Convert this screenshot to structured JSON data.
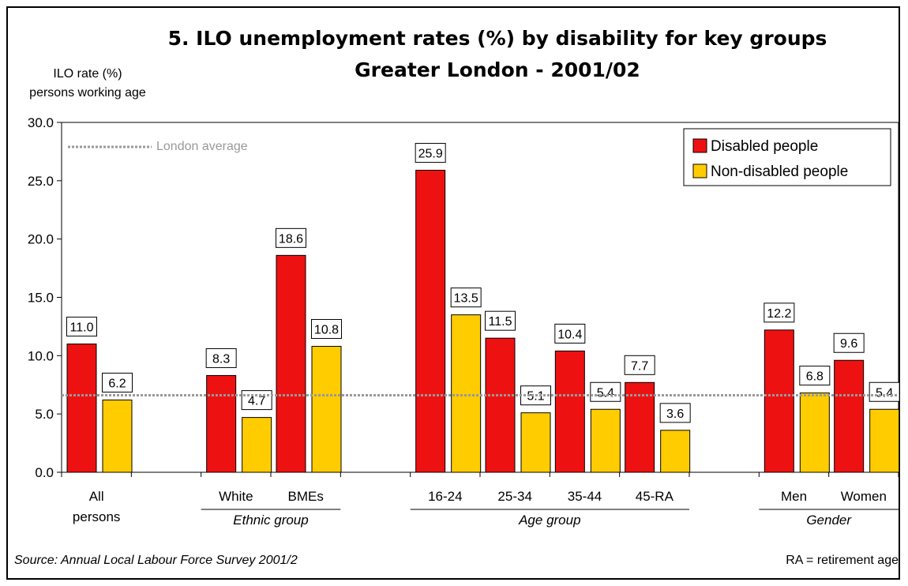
{
  "chart_data": {
    "type": "bar",
    "title": "5. ILO unemployment rates (%) by disability for key groups",
    "subtitle": "Greater London - 2001/02",
    "ylabel_line1": "ILO rate (%)",
    "ylabel_line2": "persons working age",
    "ylim": [
      0,
      30
    ],
    "yticks": [
      "0.0",
      "5.0",
      "10.0",
      "15.0",
      "20.0",
      "25.0",
      "30.0"
    ],
    "categories": [
      "All persons",
      "White",
      "BMEs",
      "16-24",
      "25-34",
      "35-44",
      "45-RA",
      "Men",
      "Women"
    ],
    "category_lines": [
      [
        "All",
        "persons"
      ],
      [
        "White"
      ],
      [
        "BMEs"
      ],
      [
        "16-24"
      ],
      [
        "25-34"
      ],
      [
        "35-44"
      ],
      [
        "45-RA"
      ],
      [
        "Men"
      ],
      [
        "Women"
      ]
    ],
    "groups": [
      {
        "label": "",
        "members": [
          0
        ]
      },
      {
        "label": "Ethnic group",
        "members": [
          1,
          2
        ]
      },
      {
        "label": "Age group",
        "members": [
          3,
          4,
          5,
          6
        ]
      },
      {
        "label": "Gender",
        "members": [
          7,
          8
        ]
      }
    ],
    "series": [
      {
        "name": "Disabled people",
        "color": "#ee1111",
        "values": [
          11.0,
          8.3,
          18.6,
          25.9,
          11.5,
          10.4,
          7.7,
          12.2,
          9.6
        ]
      },
      {
        "name": "Non-disabled people",
        "color": "#ffcc00",
        "values": [
          6.2,
          4.7,
          10.8,
          13.5,
          5.1,
          5.4,
          3.6,
          6.8,
          5.4
        ]
      }
    ],
    "reference_line": {
      "name": "London average",
      "value": 6.6,
      "color": "#999999"
    },
    "legend_position": "top-right",
    "grid": false
  },
  "footer": {
    "source": "Source: Annual Local Labour Force Survey 2001/2",
    "note": "RA = retirement age"
  }
}
